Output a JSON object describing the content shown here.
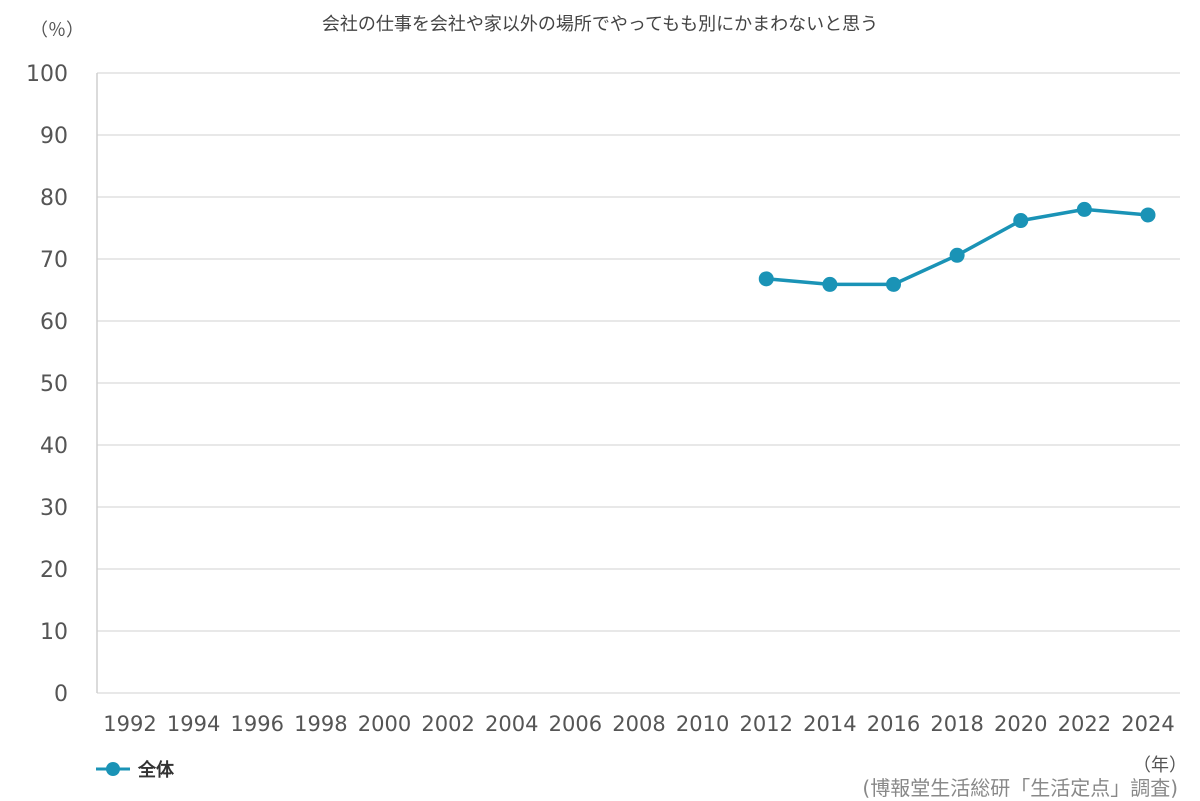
{
  "chart_data": {
    "type": "line",
    "title": "会社の仕事を会社や家以外の場所でやってもも別にかまわないと思う",
    "y_unit_label": "（％）",
    "x_unit_label": "（年）",
    "source_note": "(博報堂生活総研「生活定点」調査)",
    "ylim": [
      0,
      100
    ],
    "y_ticks": [
      0,
      10,
      20,
      30,
      40,
      50,
      60,
      70,
      80,
      90,
      100
    ],
    "x_ticks": [
      1992,
      1994,
      1996,
      1998,
      2000,
      2002,
      2004,
      2006,
      2008,
      2010,
      2012,
      2014,
      2016,
      2018,
      2020,
      2022,
      2024
    ],
    "grid": true,
    "legend_position": "bottom-left",
    "series": [
      {
        "name": "全体",
        "color": "#1a93b6",
        "x": [
          2012,
          2014,
          2016,
          2018,
          2020,
          2022,
          2024
        ],
        "values": [
          66.8,
          65.9,
          65.9,
          70.6,
          76.2,
          78.0,
          77.1
        ]
      }
    ]
  }
}
